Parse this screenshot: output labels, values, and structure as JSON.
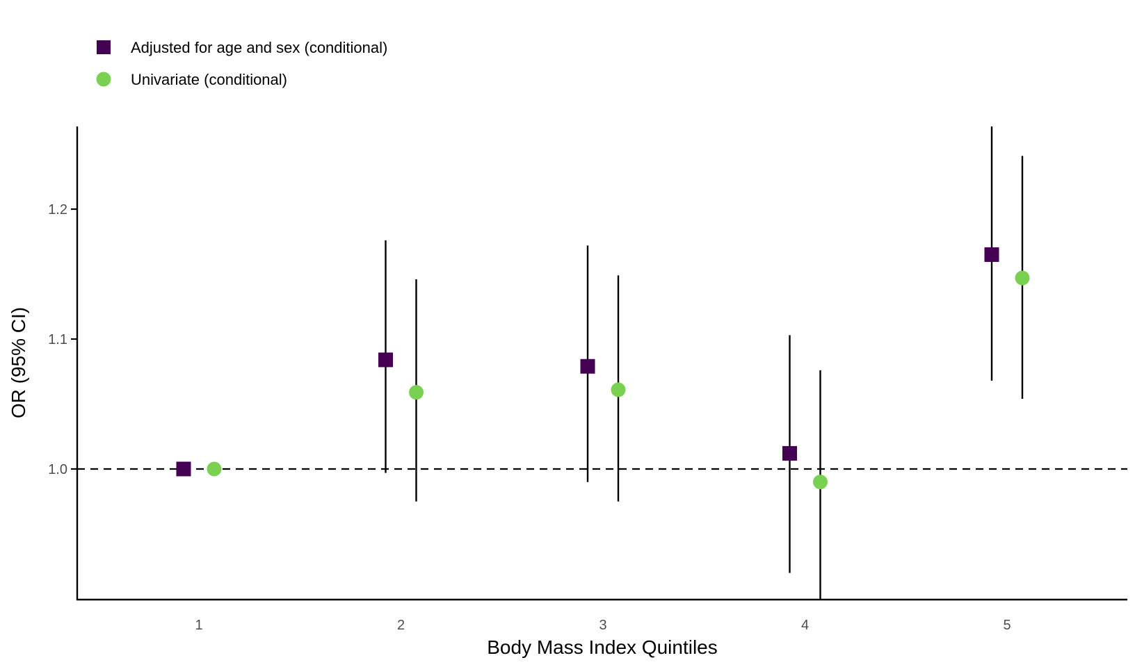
{
  "chart_data": {
    "type": "scatter",
    "title": "",
    "xlabel": "Body Mass Index Quintiles",
    "ylabel": "OR (95% CI)",
    "categories": [
      "1",
      "2",
      "3",
      "4",
      "5"
    ],
    "y_ticks": [
      "1.0",
      "1.1",
      "1.2"
    ],
    "ylim": [
      0.9,
      1.265
    ],
    "reference_line": 1.0,
    "grid": false,
    "legend_position": "top-left",
    "series": [
      {
        "name": "Adjusted for age and sex (conditional)",
        "marker": "square",
        "color": "#440154",
        "values": [
          1.0,
          1.084,
          1.079,
          1.012,
          1.165
        ],
        "ci_lower": [
          null,
          0.997,
          0.99,
          0.92,
          1.068
        ],
        "ci_upper": [
          null,
          1.176,
          1.172,
          1.103,
          1.265
        ]
      },
      {
        "name": "Univariate (conditional)",
        "marker": "circle",
        "color": "#7AD151",
        "values": [
          1.0,
          1.059,
          1.061,
          0.99,
          1.147
        ],
        "ci_lower": [
          null,
          0.975,
          0.975,
          0.9,
          1.054
        ],
        "ci_upper": [
          null,
          1.146,
          1.149,
          1.076,
          1.241
        ]
      }
    ]
  }
}
